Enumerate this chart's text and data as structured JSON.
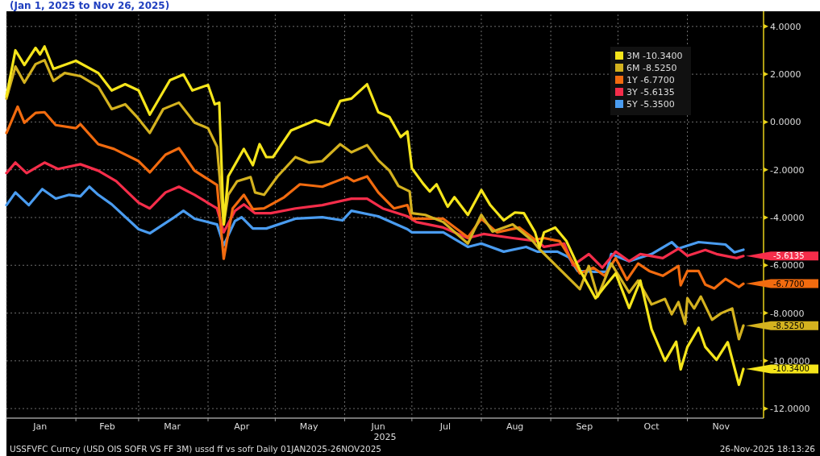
{
  "chart_data": {
    "type": "line",
    "title": "(Jan 1, 2025 to Nov 26, 2025)",
    "xlabel": "2025",
    "xlim": [
      "2025-01-01",
      "2025-12-05"
    ],
    "xticks": [
      {
        "value": "2025-01-16",
        "label": "Jan"
      },
      {
        "value": "2025-02-15",
        "label": "Feb"
      },
      {
        "value": "2025-03-16",
        "label": "Mar"
      },
      {
        "value": "2025-04-16",
        "label": "Apr"
      },
      {
        "value": "2025-05-16",
        "label": "May"
      },
      {
        "value": "2025-06-16",
        "label": "Jun"
      },
      {
        "value": "2025-07-16",
        "label": "Jul"
      },
      {
        "value": "2025-08-16",
        "label": "Aug"
      },
      {
        "value": "2025-09-16",
        "label": "Sep"
      },
      {
        "value": "2025-10-16",
        "label": "Oct"
      },
      {
        "value": "2025-11-16",
        "label": "Nov"
      }
    ],
    "ylim": [
      -12.4,
      4.5
    ],
    "yticks": [
      {
        "value": 4,
        "label": "4.0000"
      },
      {
        "value": 2,
        "label": "2.0000"
      },
      {
        "value": 0,
        "label": "0.0000"
      },
      {
        "value": -2,
        "label": "-2.0000"
      },
      {
        "value": -4,
        "label": "-4.0000"
      },
      {
        "value": -6,
        "label": "-6.0000"
      },
      {
        "value": -8,
        "label": "-8.0000"
      },
      {
        "value": -10,
        "label": "-10.0000"
      },
      {
        "value": -12,
        "label": "-12.0000"
      }
    ],
    "grid": true,
    "legend": "top right",
    "series": [
      {
        "name": "3M -10.3400",
        "color": "#f5e51b",
        "x": [
          "2025-01-01",
          "2025-01-05",
          "2025-01-09",
          "2025-01-14",
          "2025-01-16",
          "2025-01-18",
          "2025-01-22",
          "2025-02-01",
          "2025-02-11",
          "2025-02-17",
          "2025-02-23",
          "2025-03-01",
          "2025-03-06",
          "2025-03-15",
          "2025-03-21",
          "2025-03-25",
          "2025-04-01",
          "2025-04-04",
          "2025-04-06",
          "2025-04-08",
          "2025-04-10",
          "2025-04-17",
          "2025-04-21",
          "2025-04-24",
          "2025-04-27",
          "2025-04-30",
          "2025-05-08",
          "2025-05-19",
          "2025-05-25",
          "2025-05-30",
          "2025-06-04",
          "2025-06-11",
          "2025-06-16",
          "2025-06-21",
          "2025-06-26",
          "2025-06-29",
          "2025-07-01",
          "2025-07-06",
          "2025-07-09",
          "2025-07-12",
          "2025-07-17",
          "2025-07-20",
          "2025-07-26",
          "2025-08-01",
          "2025-08-05",
          "2025-08-11",
          "2025-08-16",
          "2025-08-20",
          "2025-08-25",
          "2025-08-27",
          "2025-08-29",
          "2025-09-03",
          "2025-09-08",
          "2025-09-14",
          "2025-09-21",
          "2025-09-25",
          "2025-09-30",
          "2025-10-06",
          "2025-10-11",
          "2025-10-16",
          "2025-10-22",
          "2025-10-27",
          "2025-10-29",
          "2025-11-01",
          "2025-11-06",
          "2025-11-09",
          "2025-11-14",
          "2025-11-19",
          "2025-11-24",
          "2025-11-26"
        ],
        "values": [
          1.08,
          3.0,
          2.39,
          3.1,
          2.83,
          3.16,
          2.22,
          2.56,
          2.05,
          1.32,
          1.58,
          1.32,
          0.31,
          1.75,
          1.99,
          1.32,
          1.55,
          0.74,
          0.81,
          -4.29,
          -2.28,
          -1.13,
          -1.81,
          -0.93,
          -1.47,
          -1.47,
          -0.36,
          0.07,
          -0.13,
          0.88,
          0.98,
          1.58,
          0.41,
          0.21,
          -0.63,
          -0.4,
          -1.94,
          -2.58,
          -2.91,
          -2.61,
          -3.55,
          -3.15,
          -3.89,
          -2.85,
          -3.48,
          -4.12,
          -3.79,
          -3.82,
          -4.62,
          -5.26,
          -4.62,
          -4.42,
          -4.99,
          -6.2,
          -7.38,
          -6.9,
          -6.34,
          -7.79,
          -6.64,
          -8.68,
          -10.0,
          -9.2,
          -10.36,
          -9.42,
          -8.62,
          -9.42,
          -9.96,
          -9.22,
          -11.0,
          -10.34
        ]
      },
      {
        "name": "6M -8.5250",
        "color": "#d4b21f",
        "x": [
          "2025-01-01",
          "2025-01-05",
          "2025-01-09",
          "2025-01-14",
          "2025-01-18",
          "2025-01-22",
          "2025-01-27",
          "2025-02-03",
          "2025-02-11",
          "2025-02-17",
          "2025-02-23",
          "2025-02-28",
          "2025-03-06",
          "2025-03-12",
          "2025-03-19",
          "2025-03-26",
          "2025-04-01",
          "2025-04-05",
          "2025-04-08",
          "2025-04-10",
          "2025-04-14",
          "2025-04-20",
          "2025-04-22",
          "2025-04-26",
          "2025-05-02",
          "2025-05-10",
          "2025-05-16",
          "2025-05-22",
          "2025-05-30",
          "2025-06-04",
          "2025-06-11",
          "2025-06-16",
          "2025-06-21",
          "2025-06-25",
          "2025-06-30",
          "2025-07-01",
          "2025-07-07",
          "2025-07-15",
          "2025-07-26",
          "2025-08-01",
          "2025-08-06",
          "2025-08-15",
          "2025-08-24",
          "2025-08-27",
          "2025-09-14",
          "2025-09-18",
          "2025-09-22",
          "2025-09-28",
          "2025-10-06",
          "2025-10-10",
          "2025-10-16",
          "2025-10-22",
          "2025-10-25",
          "2025-10-28",
          "2025-10-31",
          "2025-11-01",
          "2025-11-04",
          "2025-11-07",
          "2025-11-12",
          "2025-11-16",
          "2025-11-21",
          "2025-11-24",
          "2025-11-26"
        ],
        "values": [
          0.98,
          2.32,
          1.65,
          2.42,
          2.59,
          1.72,
          2.05,
          1.92,
          1.48,
          0.54,
          0.74,
          0.24,
          -0.46,
          0.54,
          0.81,
          -0.03,
          -0.26,
          -1.03,
          -4.29,
          -3.05,
          -2.48,
          -2.31,
          -2.95,
          -3.05,
          -2.28,
          -1.47,
          -1.7,
          -1.64,
          -0.93,
          -1.27,
          -0.97,
          -1.6,
          -2.04,
          -2.68,
          -2.91,
          -3.82,
          -3.89,
          -4.19,
          -5.09,
          -3.89,
          -4.59,
          -4.29,
          -4.99,
          -5.33,
          -7.0,
          -6.03,
          -7.31,
          -5.93,
          -7.14,
          -6.64,
          -7.64,
          -7.41,
          -8.05,
          -7.54,
          -8.45,
          -7.38,
          -7.81,
          -7.31,
          -8.28,
          -8.01,
          -7.81,
          -9.09,
          -8.525
        ]
      },
      {
        "name": "1Y -6.7700",
        "color": "#f26b0f",
        "x": [
          "2025-01-01",
          "2025-01-06",
          "2025-01-09",
          "2025-01-14",
          "2025-01-18",
          "2025-01-23",
          "2025-02-01",
          "2025-02-03",
          "2025-02-11",
          "2025-02-18",
          "2025-03-01",
          "2025-03-06",
          "2025-03-13",
          "2025-03-19",
          "2025-03-26",
          "2025-04-05",
          "2025-04-08",
          "2025-04-12",
          "2025-04-17",
          "2025-04-21",
          "2025-04-26",
          "2025-05-05",
          "2025-05-12",
          "2025-05-22",
          "2025-06-02",
          "2025-06-05",
          "2025-06-11",
          "2025-06-16",
          "2025-06-23",
          "2025-06-29",
          "2025-07-01",
          "2025-07-15",
          "2025-07-26",
          "2025-08-01",
          "2025-08-08",
          "2025-08-18",
          "2025-08-25",
          "2025-08-29",
          "2025-09-05",
          "2025-09-14",
          "2025-09-20",
          "2025-09-25",
          "2025-09-30",
          "2025-10-05",
          "2025-10-10",
          "2025-10-15",
          "2025-10-21",
          "2025-10-28",
          "2025-10-29",
          "2025-11-01",
          "2025-11-06",
          "2025-11-09",
          "2025-11-13",
          "2025-11-18",
          "2025-11-24",
          "2025-11-26"
        ],
        "values": [
          -0.46,
          0.64,
          -0.03,
          0.38,
          0.41,
          -0.13,
          -0.26,
          -0.09,
          -0.93,
          -1.13,
          -1.64,
          -2.11,
          -1.37,
          -1.1,
          -2.04,
          -2.64,
          -5.73,
          -3.62,
          -3.05,
          -3.65,
          -3.62,
          -3.15,
          -2.61,
          -2.71,
          -2.31,
          -2.48,
          -2.28,
          -2.95,
          -3.62,
          -3.48,
          -4.05,
          -4.05,
          -4.83,
          -4.05,
          -4.62,
          -4.42,
          -4.93,
          -4.86,
          -4.99,
          -6.34,
          -6.1,
          -6.44,
          -5.7,
          -6.61,
          -5.93,
          -6.24,
          -6.44,
          -6.03,
          -6.84,
          -6.24,
          -6.24,
          -6.81,
          -6.97,
          -6.57,
          -6.91,
          -6.77
        ]
      },
      {
        "name": "3Y -5.6135",
        "color": "#f52d4a",
        "x": [
          "2025-01-01",
          "2025-01-05",
          "2025-01-10",
          "2025-01-18",
          "2025-01-24",
          "2025-02-03",
          "2025-02-11",
          "2025-02-19",
          "2025-03-01",
          "2025-03-06",
          "2025-03-13",
          "2025-03-19",
          "2025-03-26",
          "2025-04-05",
          "2025-04-08",
          "2025-04-13",
          "2025-04-17",
          "2025-04-22",
          "2025-04-29",
          "2025-05-10",
          "2025-05-22",
          "2025-06-04",
          "2025-06-11",
          "2025-06-18",
          "2025-06-29",
          "2025-07-03",
          "2025-07-15",
          "2025-07-26",
          "2025-08-02",
          "2025-08-15",
          "2025-08-26",
          "2025-08-29",
          "2025-09-07",
          "2025-09-11",
          "2025-09-18",
          "2025-09-24",
          "2025-09-30",
          "2025-10-06",
          "2025-10-11",
          "2025-10-21",
          "2025-10-28",
          "2025-11-01",
          "2025-11-09",
          "2025-11-14",
          "2025-11-23",
          "2025-11-26"
        ],
        "values": [
          -2.14,
          -1.7,
          -2.14,
          -1.7,
          -1.97,
          -1.77,
          -2.04,
          -2.48,
          -3.38,
          -3.62,
          -2.95,
          -2.71,
          -3.05,
          -3.62,
          -4.62,
          -3.72,
          -3.45,
          -3.82,
          -3.82,
          -3.62,
          -3.48,
          -3.21,
          -3.21,
          -3.62,
          -3.95,
          -4.19,
          -4.42,
          -4.86,
          -4.69,
          -4.86,
          -4.99,
          -5.23,
          -5.09,
          -6.0,
          -5.53,
          -6.1,
          -5.43,
          -5.83,
          -5.53,
          -5.7,
          -5.3,
          -5.6,
          -5.36,
          -5.53,
          -5.7,
          -5.6135
        ]
      },
      {
        "name": "5Y -5.3500",
        "color": "#4a9cf0",
        "x": [
          "2025-01-01",
          "2025-01-05",
          "2025-01-11",
          "2025-01-17",
          "2025-01-23",
          "2025-01-29",
          "2025-02-03",
          "2025-02-07",
          "2025-02-11",
          "2025-02-17",
          "2025-03-01",
          "2025-03-06",
          "2025-03-16",
          "2025-03-21",
          "2025-03-26",
          "2025-04-05",
          "2025-04-08",
          "2025-04-13",
          "2025-04-16",
          "2025-04-21",
          "2025-04-27",
          "2025-05-10",
          "2025-05-22",
          "2025-05-31",
          "2025-06-04",
          "2025-06-16",
          "2025-06-29",
          "2025-07-01",
          "2025-07-15",
          "2025-07-26",
          "2025-08-01",
          "2025-08-11",
          "2025-08-21",
          "2025-08-26",
          "2025-09-04",
          "2025-09-09",
          "2025-09-13",
          "2025-09-20",
          "2025-09-26",
          "2025-09-28",
          "2025-10-06",
          "2025-10-16",
          "2025-10-25",
          "2025-10-28",
          "2025-11-06",
          "2025-11-18",
          "2025-11-22",
          "2025-11-26"
        ],
        "values": [
          -3.48,
          -2.95,
          -3.48,
          -2.81,
          -3.21,
          -3.05,
          -3.11,
          -2.71,
          -3.05,
          -3.45,
          -4.49,
          -4.66,
          -4.05,
          -3.72,
          -4.05,
          -4.29,
          -5.16,
          -4.15,
          -3.99,
          -4.46,
          -4.46,
          -4.05,
          -3.99,
          -4.12,
          -3.72,
          -3.95,
          -4.49,
          -4.62,
          -4.62,
          -5.23,
          -5.09,
          -5.43,
          -5.23,
          -5.43,
          -5.43,
          -5.66,
          -6.24,
          -6.27,
          -6.27,
          -5.53,
          -5.83,
          -5.53,
          -5.03,
          -5.3,
          -5.03,
          -5.13,
          -5.46,
          -5.35
        ]
      }
    ],
    "annotations": [
      {
        "text": "-5.6135",
        "x": "2025-11-26",
        "y": -5.6135
      },
      {
        "text": "-6.7700",
        "x": "2025-11-26",
        "y": -6.77
      },
      {
        "text": "-8.5250",
        "x": "2025-11-26",
        "y": -8.525
      },
      {
        "text": "-10.3400",
        "x": "2025-11-26",
        "y": -10.34
      },
      "USSFVFC Curncy (USD OIS SOFR VS FF 3M) ussd ff vs sofr Daily 01JAN2025-26NOV2025",
      "26-Nov-2025 18:13:26"
    ]
  }
}
